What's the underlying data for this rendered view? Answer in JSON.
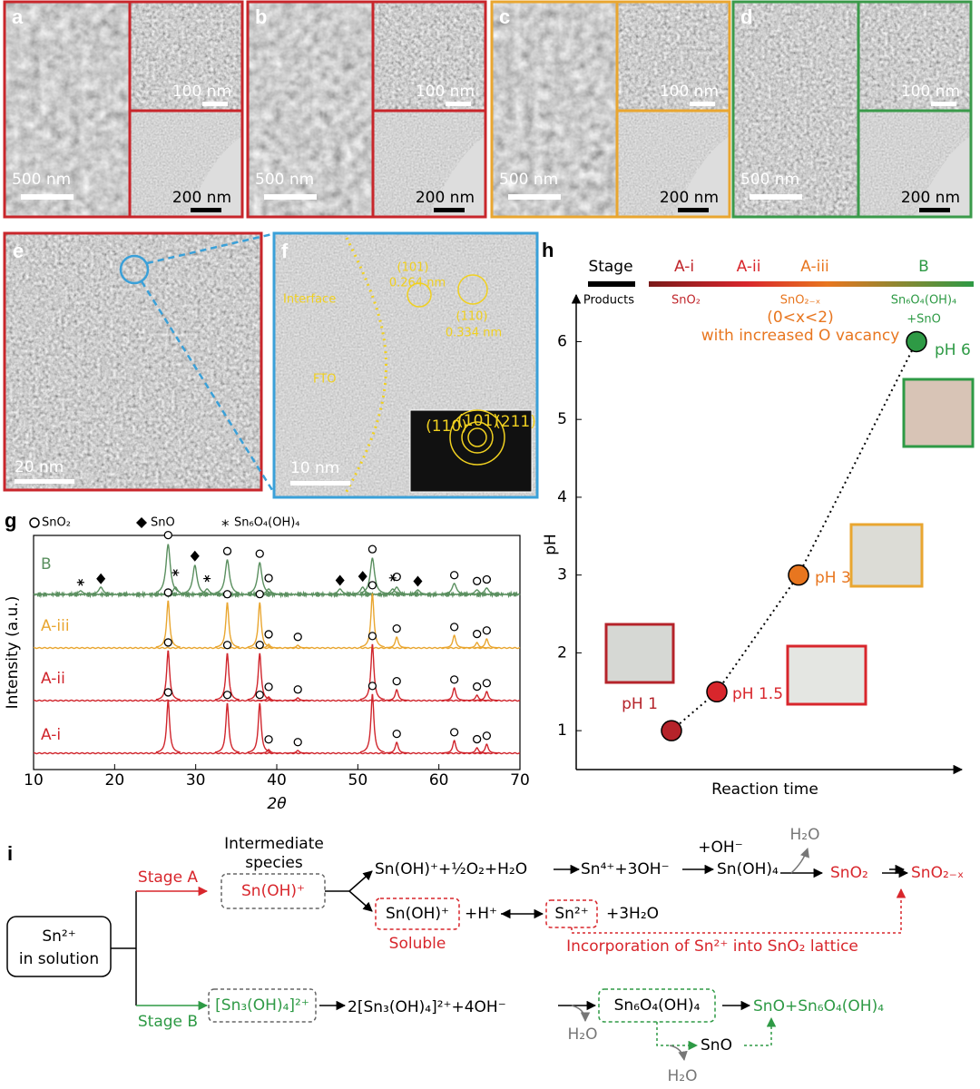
{
  "micrographs": [
    {
      "label": "a",
      "main_scale": "500 nm",
      "inset_scale": "100 nm",
      "tem_scale": "200 nm",
      "color": "#c8262b"
    },
    {
      "label": "b",
      "main_scale": "500 nm",
      "inset_scale": "100 nm",
      "tem_scale": "200 nm",
      "color": "#c8262b"
    },
    {
      "label": "c",
      "main_scale": "500 nm",
      "inset_scale": "100 nm",
      "tem_scale": "200 nm",
      "color": "#e9a630"
    },
    {
      "label": "d",
      "main_scale": "500 nm",
      "inset_scale": "100 nm",
      "tem_scale": "200 nm",
      "color": "#3a9a4a"
    }
  ],
  "panel_e": {
    "label": "e",
    "scale": "20 nm"
  },
  "panel_f": {
    "label": "f",
    "scale": "10 nm",
    "interface": "Interface",
    "substrate": "FTO",
    "plane_101": "(101)",
    "d_101": "0.264 nm",
    "plane_110": "(110)",
    "d_110": "0.334 nm",
    "fft_rings": [
      "(110)",
      "(101)",
      "(211)"
    ]
  },
  "chart_data": [
    {
      "type": "line",
      "panel": "g",
      "xlabel": "2θ",
      "ylabel": "Intensity (a.u.)",
      "xlim": [
        10,
        70
      ],
      "xticks": [
        10,
        20,
        30,
        40,
        50,
        60,
        70
      ],
      "legend": [
        "SnO₂",
        "SnO",
        "Sn₆O₄(OH)₄"
      ],
      "series": [
        {
          "name": "B",
          "color": "#5a8f5f",
          "peaks": [
            [
              15.8,
              4
            ],
            [
              18.3,
              8
            ],
            [
              26.6,
              55
            ],
            [
              27.5,
              8
            ],
            [
              29.9,
              32
            ],
            [
              31.4,
              6
            ],
            [
              33.9,
              38
            ],
            [
              37.9,
              35
            ],
            [
              39.0,
              6
            ],
            [
              47.8,
              6
            ],
            [
              50.6,
              8
            ],
            [
              51.8,
              40
            ],
            [
              54.3,
              6
            ],
            [
              54.8,
              8
            ],
            [
              57.4,
              5
            ],
            [
              61.9,
              12
            ],
            [
              64.7,
              5
            ],
            [
              65.9,
              7
            ]
          ],
          "markers": {
            "circle": [
              26.6,
              33.9,
              37.9,
              39.0,
              51.8,
              54.8,
              61.9,
              64.7,
              65.9
            ],
            "diamond": [
              18.3,
              29.9,
              47.8,
              50.6,
              57.4
            ],
            "star": [
              15.8,
              27.5,
              31.4,
              54.3
            ]
          }
        },
        {
          "name": "A-iii",
          "color": "#e9a630",
          "peaks": [
            [
              26.6,
              52
            ],
            [
              33.9,
              50
            ],
            [
              37.9,
              50
            ],
            [
              39.0,
              4
            ],
            [
              42.6,
              3
            ],
            [
              51.8,
              60
            ],
            [
              54.8,
              12
            ],
            [
              61.9,
              14
            ],
            [
              64.7,
              6
            ],
            [
              65.9,
              10
            ]
          ],
          "markers": {
            "circle": [
              26.6,
              33.9,
              37.9,
              39.0,
              42.6,
              51.8,
              54.8,
              61.9,
              64.7,
              65.9
            ]
          }
        },
        {
          "name": "A-ii",
          "color": "#d0252c",
          "peaks": [
            [
              26.6,
              55
            ],
            [
              33.9,
              52
            ],
            [
              37.9,
              52
            ],
            [
              39.0,
              4
            ],
            [
              42.6,
              3
            ],
            [
              51.8,
              62
            ],
            [
              54.8,
              12
            ],
            [
              61.9,
              14
            ],
            [
              64.7,
              6
            ],
            [
              65.9,
              10
            ]
          ],
          "markers": {
            "circle": [
              26.6,
              33.9,
              37.9,
              39.0,
              42.6,
              51.8,
              54.8,
              61.9,
              64.7,
              65.9
            ]
          }
        },
        {
          "name": "A-i",
          "color": "#d0252c",
          "peaks": [
            [
              26.6,
              58
            ],
            [
              33.9,
              55
            ],
            [
              37.9,
              55
            ],
            [
              39.0,
              4
            ],
            [
              42.6,
              3
            ],
            [
              51.8,
              65
            ],
            [
              54.8,
              12
            ],
            [
              61.9,
              14
            ],
            [
              64.7,
              6
            ],
            [
              65.9,
              10
            ]
          ],
          "markers": {
            "circle": [
              26.6,
              33.9,
              37.9,
              39.0,
              42.6,
              51.8,
              54.8,
              61.9,
              64.7,
              65.9
            ]
          }
        }
      ]
    },
    {
      "type": "scatter",
      "panel": "h",
      "xlabel": "Reaction time",
      "ylabel": "pH",
      "ylim": [
        0.5,
        6.6
      ],
      "yticks": [
        1,
        2,
        3,
        4,
        5,
        6
      ],
      "values": [
        1,
        1.5,
        3,
        6
      ],
      "value_labels": [
        "pH 1",
        "pH 1.5",
        "pH 3",
        "pH 6"
      ],
      "colors": [
        "#b5232a",
        "#d8262c",
        "#e8761f",
        "#2e9a45"
      ],
      "stage_label": "Stage",
      "products_label": "Products",
      "stages": [
        "A-i",
        "A-ii",
        "A-iii",
        "B"
      ],
      "stage_colors": [
        "#c0262b",
        "#d8262c",
        "#e8761f",
        "#2e9a45"
      ],
      "products": {
        "a_i": "SnO₂",
        "a_iii": "SnO₂₋ₓ",
        "a_iii_range": "(0<x<2)",
        "a_iii_note": "with increased O vacancy",
        "b": "Sn₆O₄(OH)₄",
        "b_extra": "+SnO"
      }
    }
  ],
  "scheme": {
    "label": "i",
    "start": "Sn²⁺",
    "start_note": "in solution",
    "stage_a": "Stage A",
    "stage_b": "Stage B",
    "intermediate": [
      "Intermediate",
      "species"
    ],
    "a_species": "Sn(OH)⁺",
    "a_eq1": "Sn(OH)⁺+½O₂+H₂O",
    "a_eq2": "Sn⁴⁺+3OH⁻",
    "a_oh": "+OH⁻",
    "a_hydroxide": "Sn(OH)₄",
    "a_water": "H₂O",
    "a_oxide": "SnO₂",
    "a_final": "SnO₂₋ₓ",
    "a_soluble_species": "Sn(OH)⁺",
    "a_h": "+H⁺",
    "a_sn2": "Sn²⁺",
    "a_water3": "+3H₂O",
    "a_soluble": "Soluble",
    "a_incorporation": "Incorporation of Sn²⁺ into SnO₂ lattice",
    "b_species": "[Sn₃(OH)₄]²⁺",
    "b_eq": "2[Sn₃(OH)₄]²⁺+4OH⁻",
    "b_water": "H₂O",
    "b_hydroxide": "Sn₆O₄(OH)₄",
    "b_final": "SnO+Sn₆O₄(OH)₄",
    "b_sno": "SnO",
    "b_water2": "H₂O"
  }
}
